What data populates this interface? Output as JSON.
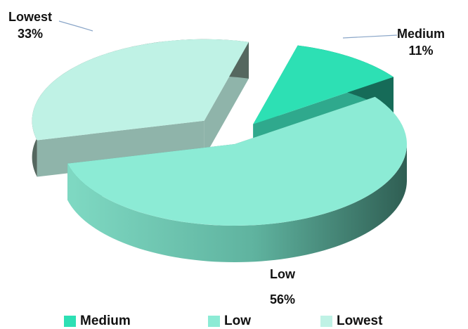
{
  "chart_data": {
    "type": "pie",
    "style": "3d-exploded",
    "categories": [
      "Medium",
      "Low",
      "Lowest"
    ],
    "values": [
      11,
      56,
      33
    ],
    "value_labels": [
      "11%",
      "56%",
      "33%"
    ],
    "colors": [
      "#2de0b4",
      "#8cebd5",
      "#bff2e5"
    ],
    "title": "",
    "legend_position": "bottom"
  }
}
